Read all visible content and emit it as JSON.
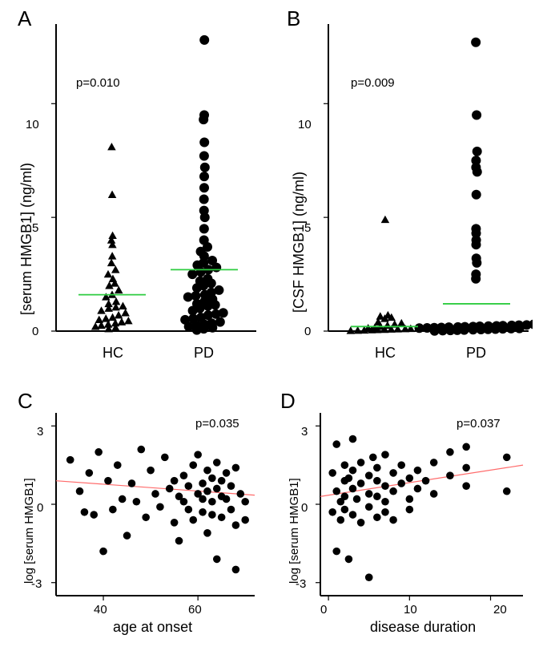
{
  "panel_A": {
    "label": "A",
    "type": "scatter",
    "pvalue": "p=0.010",
    "ylabel": "[serum HMGB1] (ng/ml)",
    "ylim": [
      0,
      13.5
    ],
    "yticks": [
      0,
      5,
      10
    ],
    "xcategories": [
      "HC",
      "PD"
    ],
    "marker_hc": "triangle",
    "marker_pd": "circle",
    "marker_hc_size": 7,
    "marker_pd_size": 10,
    "marker_color": "#000000",
    "mean_line_color": "#2ecc40",
    "mean_hc": 1.6,
    "mean_pd": 2.7,
    "background_color": "#ffffff",
    "data_hc": [
      0.1,
      0.15,
      0.2,
      0.25,
      0.3,
      0.35,
      0.4,
      0.45,
      0.5,
      0.55,
      0.6,
      0.7,
      0.8,
      0.9,
      1.0,
      1.05,
      1.1,
      1.2,
      1.3,
      1.5,
      1.6,
      1.8,
      2.0,
      2.1,
      2.3,
      2.5,
      2.7,
      3.0,
      3.3,
      3.8,
      4.0,
      4.2,
      6.0,
      8.1
    ],
    "data_pd": [
      0.05,
      0.1,
      0.15,
      0.2,
      0.25,
      0.3,
      0.35,
      0.4,
      0.5,
      0.55,
      0.6,
      0.7,
      0.75,
      0.8,
      0.9,
      1.0,
      1.1,
      1.15,
      1.2,
      1.3,
      1.4,
      1.5,
      1.55,
      1.6,
      1.7,
      1.8,
      1.9,
      2.0,
      2.1,
      2.2,
      2.3,
      2.5,
      2.6,
      2.7,
      2.8,
      2.9,
      3.0,
      3.1,
      3.3,
      3.5,
      3.7,
      4.0,
      4.5,
      5.0,
      5.3,
      5.8,
      6.3,
      6.8,
      7.2,
      7.7,
      8.3,
      9.3,
      9.5,
      12.8
    ]
  },
  "panel_B": {
    "label": "B",
    "type": "scatter",
    "pvalue": "p=0.009",
    "ylabel": "[CSF HMGB1] (ng/ml)",
    "ylim": [
      0,
      13.5
    ],
    "yticks": [
      0,
      5,
      10
    ],
    "xcategories": [
      "HC",
      "PD"
    ],
    "marker_hc": "triangle",
    "marker_pd": "circle",
    "marker_hc_size": 7,
    "marker_pd_size": 10,
    "marker_color": "#000000",
    "mean_line_color": "#2ecc40",
    "mean_hc": 0.2,
    "mean_pd": 1.2,
    "background_color": "#ffffff",
    "data_hc": [
      0.02,
      0.03,
      0.04,
      0.05,
      0.06,
      0.07,
      0.08,
      0.09,
      0.1,
      0.11,
      0.12,
      0.13,
      0.15,
      0.2,
      0.25,
      0.3,
      0.35,
      0.4,
      0.55,
      0.6,
      0.65,
      0.7,
      4.9
    ],
    "data_pd": [
      0.01,
      0.02,
      0.03,
      0.04,
      0.05,
      0.06,
      0.07,
      0.08,
      0.09,
      0.1,
      0.11,
      0.12,
      0.13,
      0.14,
      0.15,
      0.16,
      0.17,
      0.18,
      0.19,
      0.2,
      0.21,
      0.22,
      0.23,
      0.24,
      0.25,
      0.26,
      0.27,
      0.3,
      2.3,
      2.5,
      3.0,
      3.2,
      3.8,
      4.0,
      4.3,
      4.5,
      6.0,
      7.0,
      7.2,
      7.5,
      7.9,
      9.5,
      12.7
    ]
  },
  "panel_C": {
    "label": "C",
    "type": "scatter",
    "pvalue": "p=0.035",
    "ylabel": "log [serum HMGB1]",
    "xlabel": "age at onset",
    "ylim": [
      -3.5,
      3.5
    ],
    "yticks": [
      -3,
      0,
      3
    ],
    "xlim": [
      30,
      72
    ],
    "xticks": [
      40,
      60
    ],
    "marker": "circle",
    "marker_size": 8,
    "marker_color": "#000000",
    "regression_color": "#ff6b6b",
    "regression_p1": [
      30,
      0.9
    ],
    "regression_p2": [
      72,
      0.35
    ],
    "background_color": "#ffffff",
    "points": [
      [
        33,
        1.7
      ],
      [
        35,
        0.5
      ],
      [
        36,
        -0.3
      ],
      [
        37,
        1.2
      ],
      [
        38,
        -0.4
      ],
      [
        39,
        2.0
      ],
      [
        40,
        -1.8
      ],
      [
        41,
        0.9
      ],
      [
        42,
        -0.2
      ],
      [
        43,
        1.5
      ],
      [
        44,
        0.2
      ],
      [
        45,
        -1.2
      ],
      [
        46,
        0.8
      ],
      [
        47,
        0.1
      ],
      [
        48,
        2.1
      ],
      [
        49,
        -0.5
      ],
      [
        50,
        1.3
      ],
      [
        51,
        0.4
      ],
      [
        52,
        -0.1
      ],
      [
        53,
        1.8
      ],
      [
        54,
        0.6
      ],
      [
        55,
        -0.7
      ],
      [
        55,
        0.9
      ],
      [
        56,
        0.3
      ],
      [
        56,
        -1.4
      ],
      [
        57,
        1.1
      ],
      [
        57,
        0.1
      ],
      [
        58,
        -0.2
      ],
      [
        58,
        0.7
      ],
      [
        59,
        1.5
      ],
      [
        59,
        -0.6
      ],
      [
        60,
        0.4
      ],
      [
        60,
        1.9
      ],
      [
        61,
        0.2
      ],
      [
        61,
        -0.3
      ],
      [
        61,
        0.8
      ],
      [
        62,
        -1.1
      ],
      [
        62,
        0.5
      ],
      [
        62,
        1.3
      ],
      [
        63,
        -0.4
      ],
      [
        63,
        0.1
      ],
      [
        63,
        1.0
      ],
      [
        64,
        -2.1
      ],
      [
        64,
        0.6
      ],
      [
        64,
        1.6
      ],
      [
        65,
        0.3
      ],
      [
        65,
        -0.5
      ],
      [
        65,
        0.9
      ],
      [
        66,
        0.2
      ],
      [
        66,
        1.2
      ],
      [
        67,
        -0.2
      ],
      [
        67,
        0.7
      ],
      [
        68,
        1.4
      ],
      [
        68,
        -0.8
      ],
      [
        68,
        -2.5
      ],
      [
        69,
        0.4
      ],
      [
        70,
        0.1
      ],
      [
        70,
        -0.6
      ]
    ]
  },
  "panel_D": {
    "label": "D",
    "type": "scatter",
    "pvalue": "p=0.037",
    "ylabel": "log [serum HMGB1]",
    "xlabel": "disease duration",
    "ylim": [
      -3.5,
      3.5
    ],
    "yticks": [
      -3,
      0,
      3
    ],
    "xlim": [
      -1,
      24
    ],
    "xticks": [
      0,
      10,
      20
    ],
    "marker": "circle",
    "marker_size": 8,
    "marker_color": "#000000",
    "regression_color": "#ff6b6b",
    "regression_p1": [
      -1,
      0.3
    ],
    "regression_p2": [
      24,
      1.5
    ],
    "background_color": "#ffffff",
    "points": [
      [
        0.5,
        -0.3
      ],
      [
        0.5,
        1.2
      ],
      [
        1,
        0.5
      ],
      [
        1,
        -1.8
      ],
      [
        1,
        2.3
      ],
      [
        1.5,
        0.1
      ],
      [
        1.5,
        -0.6
      ],
      [
        2,
        0.9
      ],
      [
        2,
        1.5
      ],
      [
        2,
        -0.2
      ],
      [
        2,
        0.3
      ],
      [
        2.5,
        -2.1
      ],
      [
        2.5,
        1.0
      ],
      [
        3,
        0.6
      ],
      [
        3,
        -0.4
      ],
      [
        3,
        1.3
      ],
      [
        3,
        2.5
      ],
      [
        3.5,
        0.2
      ],
      [
        4,
        -0.7
      ],
      [
        4,
        0.8
      ],
      [
        4,
        1.6
      ],
      [
        5,
        0.4
      ],
      [
        5,
        -0.1
      ],
      [
        5,
        1.1
      ],
      [
        5,
        -2.8
      ],
      [
        5.5,
        1.8
      ],
      [
        6,
        0.3
      ],
      [
        6,
        -0.5
      ],
      [
        6,
        0.9
      ],
      [
        6,
        1.4
      ],
      [
        7,
        0.1
      ],
      [
        7,
        1.9
      ],
      [
        7,
        -0.3
      ],
      [
        7,
        0.7
      ],
      [
        8,
        1.2
      ],
      [
        8,
        0.5
      ],
      [
        8,
        -0.6
      ],
      [
        9,
        0.8
      ],
      [
        9,
        1.5
      ],
      [
        10,
        0.2
      ],
      [
        10,
        -0.2
      ],
      [
        10,
        1.0
      ],
      [
        11,
        0.6
      ],
      [
        11,
        1.3
      ],
      [
        12,
        0.9
      ],
      [
        13,
        1.6
      ],
      [
        13,
        0.4
      ],
      [
        15,
        2.0
      ],
      [
        15,
        1.1
      ],
      [
        17,
        0.7
      ],
      [
        17,
        2.2
      ],
      [
        17,
        1.4
      ],
      [
        22,
        1.8
      ],
      [
        22,
        0.5
      ]
    ]
  },
  "panel_label_fontsize": 26,
  "pvalue_fontsize": 15,
  "axis_label_fontsize": 18,
  "tick_fontsize": 15
}
